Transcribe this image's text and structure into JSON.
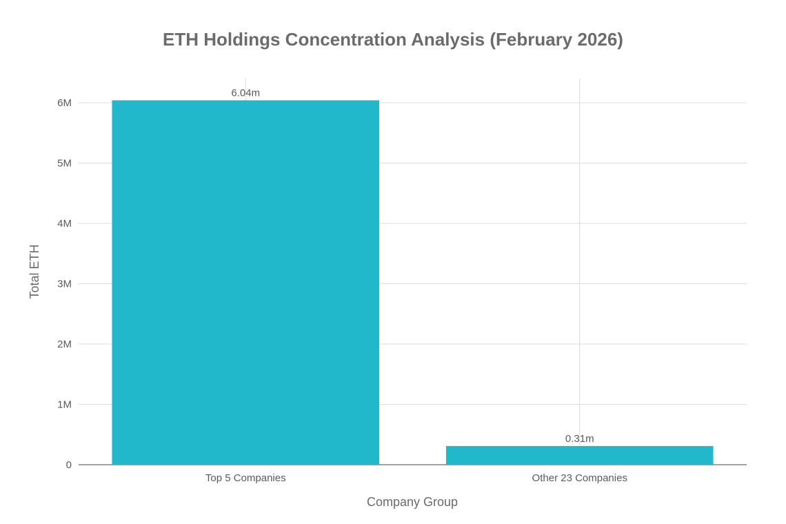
{
  "chart_data": {
    "type": "bar",
    "title": "ETH Holdings Concentration Analysis (February 2026)",
    "xlabel": "Company Group",
    "ylabel": "Total ETH",
    "categories": [
      "Top 5 Companies",
      "Other 23 Companies"
    ],
    "values": [
      6040000,
      310000
    ],
    "data_labels": [
      "6.04m",
      "0.31m"
    ],
    "ylim": [
      0,
      6400000
    ],
    "y_ticks": [
      0,
      1000000,
      2000000,
      3000000,
      4000000,
      5000000,
      6000000
    ],
    "y_tick_labels": [
      "0",
      "1M",
      "2M",
      "3M",
      "4M",
      "5M",
      "6M"
    ],
    "grid": true,
    "bar_color": "#21b8cc"
  }
}
